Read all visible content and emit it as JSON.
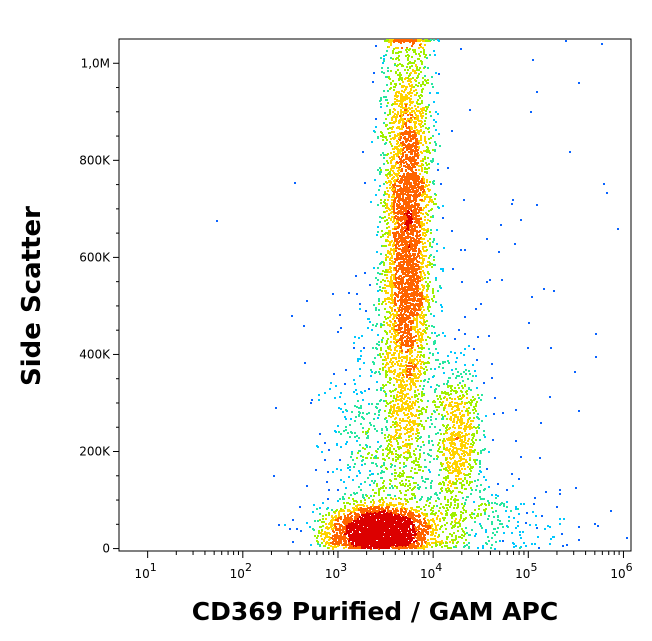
{
  "chart_data": {
    "type": "scatter",
    "xlabel": "CD369 Purified / GAM APC",
    "ylabel": "Side Scatter",
    "x_scale": "log",
    "x_range": [
      5,
      1200000
    ],
    "y_range": [
      -5000,
      1050000
    ],
    "x_ticks": [
      {
        "value": 10,
        "base": "10",
        "exp": "1"
      },
      {
        "value": 100,
        "base": "10",
        "exp": "2"
      },
      {
        "value": 1000,
        "base": "10",
        "exp": "3"
      },
      {
        "value": 10000,
        "base": "10",
        "exp": "4"
      },
      {
        "value": 100000,
        "base": "10",
        "exp": "5"
      },
      {
        "value": 1000000,
        "base": "10",
        "exp": "6"
      }
    ],
    "y_ticks": [
      {
        "value": 0,
        "label": "0"
      },
      {
        "value": 200000,
        "label": "200K"
      },
      {
        "value": 400000,
        "label": "400K"
      },
      {
        "value": 600000,
        "label": "600K"
      },
      {
        "value": 800000,
        "label": "800K"
      },
      {
        "value": 1000000,
        "label": "1,0M"
      }
    ],
    "color_scale": [
      "#0000c8",
      "#0a64ff",
      "#00c8ff",
      "#28e6a0",
      "#a0f000",
      "#ffd200",
      "#ff6400",
      "#dc0000"
    ],
    "populations": [
      {
        "name": "",
        "x_center": 2600,
        "x_spread_log": 0.28,
        "y_center": 40000,
        "y_spread": 25000,
        "count": 2600
      },
      {
        "name": "",
        "x_center": 5200,
        "x_spread_log": 0.13,
        "y_center": 650000,
        "y_spread": 220000,
        "count": 4200
      },
      {
        "name": "",
        "x_center": 18000,
        "x_spread_log": 0.12,
        "y_center": 230000,
        "y_spread": 70000,
        "count": 700
      },
      {
        "name": "",
        "x_center": 3500,
        "x_spread_log": 0.35,
        "y_center": 200000,
        "y_spread": 140000,
        "count": 900
      },
      {
        "name": "",
        "x_center": 20000,
        "x_spread_log": 0.55,
        "y_center": 60000,
        "y_spread": 40000,
        "count": 350
      },
      {
        "name": "",
        "x_center": 30000,
        "x_spread_log": 1.0,
        "y_center": 500000,
        "y_spread": 300000,
        "count": 120
      }
    ]
  }
}
